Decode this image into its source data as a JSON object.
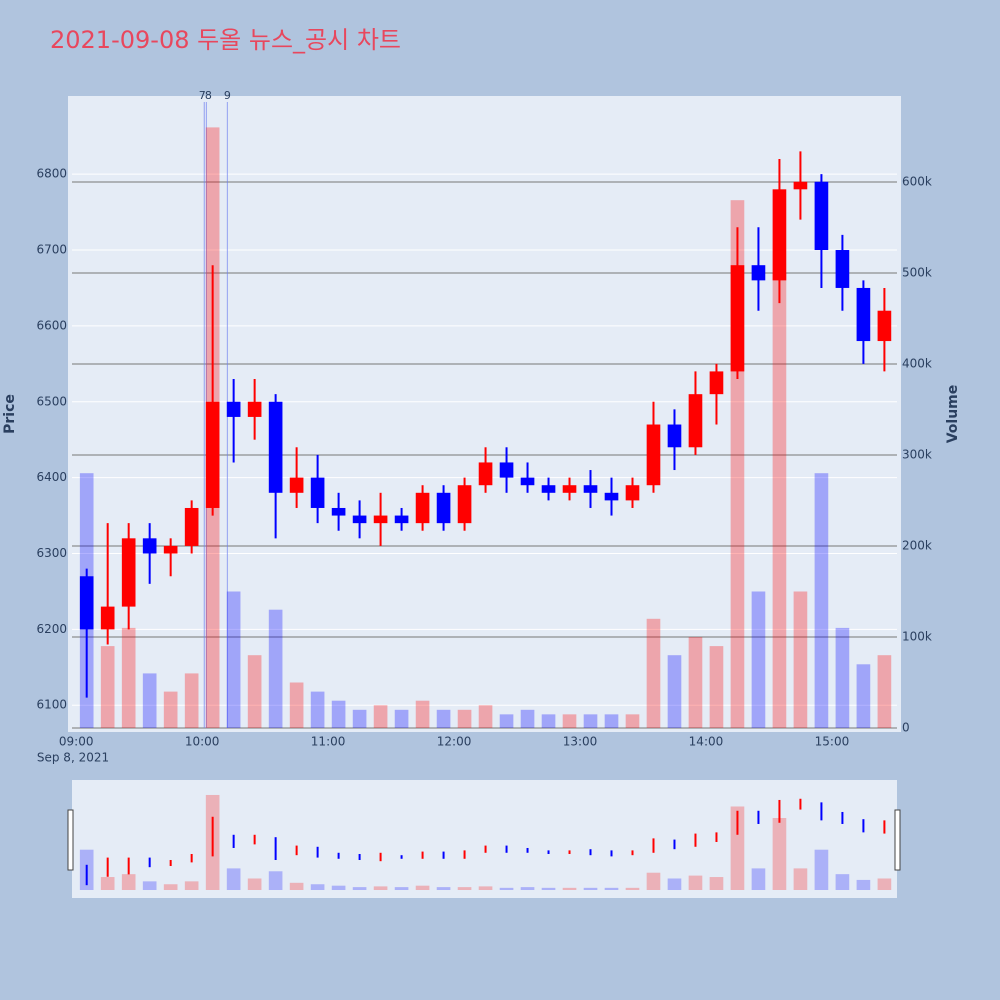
{
  "chart_data": {
    "type": "candlestick",
    "title": "2021-09-08 두올 뉴스_공시 차트",
    "ylabel": "Price",
    "y2label": "Volume",
    "x_sublabel": "Sep 8, 2021",
    "up_color": "#ff0000",
    "down_color": "#0000ff",
    "x": [
      "09:00",
      "09:10",
      "09:20",
      "09:30",
      "09:40",
      "09:50",
      "10:00",
      "10:10",
      "10:20",
      "10:30",
      "10:40",
      "10:50",
      "11:00",
      "11:10",
      "11:20",
      "11:30",
      "11:40",
      "11:50",
      "12:00",
      "12:10",
      "12:20",
      "12:30",
      "12:40",
      "12:50",
      "13:00",
      "13:10",
      "13:20",
      "13:30",
      "13:40",
      "13:50",
      "14:00",
      "14:10",
      "14:20",
      "14:30",
      "14:40",
      "14:50",
      "15:00",
      "15:10",
      "15:20"
    ],
    "open": [
      6270,
      6200,
      6230,
      6320,
      6300,
      6310,
      6360,
      6500,
      6480,
      6500,
      6380,
      6400,
      6360,
      6350,
      6340,
      6350,
      6340,
      6380,
      6340,
      6390,
      6420,
      6400,
      6390,
      6380,
      6390,
      6380,
      6370,
      6390,
      6470,
      6440,
      6510,
      6540,
      6680,
      6660,
      6780,
      6790,
      6700,
      6650,
      6580
    ],
    "high": [
      6280,
      6340,
      6340,
      6340,
      6320,
      6370,
      6680,
      6530,
      6530,
      6510,
      6440,
      6430,
      6380,
      6370,
      6380,
      6360,
      6390,
      6390,
      6400,
      6440,
      6440,
      6420,
      6400,
      6400,
      6410,
      6400,
      6400,
      6500,
      6490,
      6540,
      6550,
      6730,
      6730,
      6820,
      6830,
      6800,
      6720,
      6660,
      6650
    ],
    "low": [
      6110,
      6180,
      6200,
      6260,
      6270,
      6300,
      6350,
      6420,
      6450,
      6320,
      6360,
      6340,
      6330,
      6320,
      6310,
      6330,
      6330,
      6330,
      6330,
      6380,
      6380,
      6380,
      6370,
      6370,
      6360,
      6350,
      6360,
      6380,
      6410,
      6430,
      6470,
      6530,
      6620,
      6630,
      6740,
      6650,
      6620,
      6550,
      6540
    ],
    "close": [
      6200,
      6230,
      6320,
      6300,
      6310,
      6360,
      6500,
      6480,
      6500,
      6380,
      6400,
      6360,
      6350,
      6340,
      6350,
      6340,
      6380,
      6340,
      6390,
      6420,
      6400,
      6390,
      6380,
      6390,
      6380,
      6370,
      6390,
      6470,
      6440,
      6510,
      6540,
      6680,
      6660,
      6780,
      6790,
      6700,
      6650,
      6580,
      6620
    ],
    "volume": [
      280000,
      90000,
      110000,
      60000,
      40000,
      60000,
      660000,
      150000,
      80000,
      130000,
      50000,
      40000,
      30000,
      20000,
      25000,
      20000,
      30000,
      20000,
      20000,
      25000,
      15000,
      20000,
      15000,
      15000,
      15000,
      15000,
      15000,
      120000,
      80000,
      100000,
      90000,
      580000,
      150000,
      500000,
      150000,
      280000,
      110000,
      70000,
      80000
    ],
    "xlim": [
      "08:58",
      "15:31"
    ],
    "xticks": [
      "09:00",
      "10:00",
      "11:00",
      "12:00",
      "13:00",
      "14:00",
      "15:00"
    ],
    "ylim": [
      6070,
      6903
    ],
    "yticks": [
      6100,
      6200,
      6300,
      6400,
      6500,
      6600,
      6700,
      6800
    ],
    "y2lim": [
      0,
      694500
    ],
    "y2ticks": [
      0,
      {
        "value": 100000,
        "label": "100k"
      },
      {
        "value": 200000,
        "label": "200k"
      },
      {
        "value": 300000,
        "label": "300k"
      },
      {
        "value": 400000,
        "label": "400k"
      },
      {
        "value": 500000,
        "label": "500k"
      },
      {
        "value": 600000,
        "label": "600k"
      }
    ],
    "annotations": [
      {
        "x": "10:01",
        "label": "7"
      },
      {
        "x": "10:02",
        "label": "8"
      },
      {
        "x": "10:12",
        "label": "9"
      }
    ],
    "grid": true
  }
}
